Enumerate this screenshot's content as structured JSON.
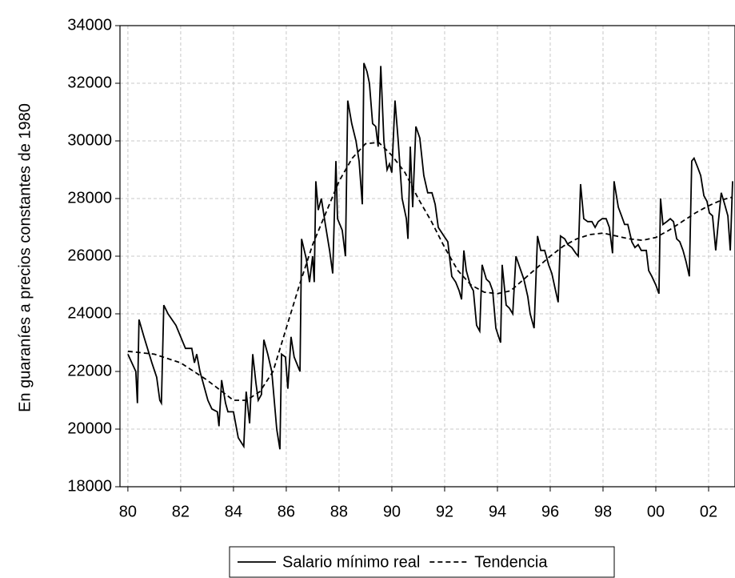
{
  "chart_data": {
    "type": "line",
    "y_label": "En guaraníes a precios constantes de 1980",
    "xlim": [
      1979.7,
      2003.0
    ],
    "ylim": [
      18000,
      34000
    ],
    "xticks": [
      {
        "value": 1980,
        "label": "80"
      },
      {
        "value": 1982,
        "label": "82"
      },
      {
        "value": 1984,
        "label": "84"
      },
      {
        "value": 1986,
        "label": "86"
      },
      {
        "value": 1988,
        "label": "88"
      },
      {
        "value": 1990,
        "label": "90"
      },
      {
        "value": 1992,
        "label": "92"
      },
      {
        "value": 1994,
        "label": "94"
      },
      {
        "value": 1996,
        "label": "96"
      },
      {
        "value": 1998,
        "label": "98"
      },
      {
        "value": 2000,
        "label": "00"
      },
      {
        "value": 2002,
        "label": "02"
      }
    ],
    "yticks": [
      18000,
      20000,
      22000,
      24000,
      26000,
      28000,
      30000,
      32000,
      34000
    ],
    "grid": true,
    "legend": "bottom",
    "series": [
      {
        "name": "Salario mínimo real",
        "color": "#000000",
        "dash": "solid",
        "x": [
          1980.0,
          1980.3,
          1980.36,
          1980.42,
          1980.61,
          1980.91,
          1981.09,
          1981.21,
          1981.27,
          1981.36,
          1981.52,
          1981.82,
          1982.18,
          1982.42,
          1982.52,
          1982.61,
          1982.73,
          1982.82,
          1983.03,
          1983.18,
          1983.39,
          1983.45,
          1983.55,
          1983.7,
          1983.79,
          1984.0,
          1984.18,
          1984.39,
          1984.48,
          1984.61,
          1984.73,
          1984.85,
          1984.94,
          1985.06,
          1985.15,
          1985.3,
          1985.45,
          1985.64,
          1985.76,
          1985.82,
          1985.97,
          1986.06,
          1986.18,
          1986.3,
          1986.52,
          1986.58,
          1986.76,
          1986.88,
          1987.0,
          1987.06,
          1987.12,
          1987.21,
          1987.33,
          1987.48,
          1987.64,
          1987.76,
          1987.88,
          1987.94,
          1988.12,
          1988.24,
          1988.33,
          1988.48,
          1988.64,
          1988.76,
          1988.88,
          1988.94,
          1989.06,
          1989.15,
          1989.27,
          1989.39,
          1989.48,
          1989.58,
          1989.7,
          1989.82,
          1989.91,
          1990.0,
          1990.12,
          1990.24,
          1990.39,
          1990.55,
          1990.61,
          1990.7,
          1990.79,
          1990.91,
          1991.06,
          1991.21,
          1991.36,
          1991.52,
          1991.64,
          1991.76,
          1991.97,
          1992.12,
          1992.27,
          1992.42,
          1992.55,
          1992.64,
          1992.73,
          1992.82,
          1992.97,
          1993.09,
          1993.21,
          1993.33,
          1993.42,
          1993.58,
          1993.7,
          1993.82,
          1993.94,
          1994.12,
          1994.18,
          1994.33,
          1994.45,
          1994.58,
          1994.7,
          1994.85,
          1995.0,
          1995.15,
          1995.24,
          1995.39,
          1995.52,
          1995.64,
          1995.79,
          1995.94,
          1996.06,
          1996.18,
          1996.3,
          1996.39,
          1996.55,
          1996.67,
          1996.82,
          1996.97,
          1997.06,
          1997.15,
          1997.27,
          1997.42,
          1997.58,
          1997.7,
          1997.82,
          1997.97,
          1998.12,
          1998.24,
          1998.36,
          1998.42,
          1998.58,
          1998.7,
          1998.82,
          1998.94,
          1999.09,
          1999.21,
          1999.33,
          1999.45,
          1999.64,
          1999.73,
          1999.85,
          2000.0,
          2000.12,
          2000.18,
          2000.27,
          2000.42,
          2000.55,
          2000.67,
          2000.79,
          2000.91,
          2001.03,
          2001.15,
          2001.27,
          2001.36,
          2001.45,
          2001.58,
          2001.7,
          2001.82,
          2001.94,
          2002.03,
          2002.15,
          2002.27,
          2002.36,
          2002.48,
          2002.61,
          2002.73,
          2002.82,
          2002.91
        ],
        "values": [
          22600,
          22000,
          20900,
          23800,
          23200,
          22300,
          21800,
          21000,
          20900,
          24300,
          24000,
          23600,
          22800,
          22800,
          22300,
          22600,
          22000,
          21700,
          21000,
          20700,
          20600,
          20100,
          21700,
          20900,
          20600,
          20600,
          19700,
          19400,
          21300,
          20200,
          22600,
          21600,
          21000,
          21200,
          23100,
          22600,
          22000,
          20000,
          19300,
          22600,
          22500,
          21400,
          23200,
          22500,
          22000,
          26600,
          25900,
          25100,
          26000,
          25100,
          28600,
          27600,
          28000,
          27100,
          26200,
          25400,
          29300,
          27300,
          26900,
          26000,
          31400,
          30600,
          30000,
          29300,
          27800,
          32700,
          32400,
          32000,
          30600,
          30500,
          29800,
          32600,
          30000,
          29000,
          29200,
          28900,
          31400,
          30000,
          28000,
          27300,
          26600,
          29800,
          27700,
          30500,
          30100,
          28800,
          28200,
          28200,
          27800,
          27000,
          26700,
          26500,
          25300,
          25100,
          24800,
          24500,
          26200,
          25500,
          25000,
          24800,
          23600,
          23400,
          25700,
          25200,
          25100,
          24800,
          23500,
          23000,
          25700,
          24300,
          24200,
          24000,
          26000,
          25600,
          25200,
          24600,
          24000,
          23500,
          26700,
          26200,
          26200,
          25700,
          25400,
          24900,
          24400,
          26700,
          26600,
          26400,
          26300,
          26100,
          26000,
          28500,
          27300,
          27200,
          27200,
          27000,
          27200,
          27300,
          27300,
          27000,
          26100,
          28600,
          27700,
          27400,
          27100,
          27100,
          26500,
          26300,
          26400,
          26200,
          26200,
          25500,
          25300,
          25000,
          24700,
          28000,
          27100,
          27200,
          27300,
          27200,
          26600,
          26500,
          26200,
          25800,
          25300,
          29300,
          29400,
          29100,
          28800,
          28100,
          27900,
          27500,
          27400,
          26200,
          27100,
          28200,
          27800,
          27400,
          26200,
          28600
        ]
      },
      {
        "name": "Tendencia",
        "color": "#000000",
        "dash": "dashed",
        "x": [
          1980,
          1981,
          1982,
          1983,
          1984,
          1984.5,
          1985,
          1985.5,
          1986,
          1986.5,
          1987,
          1987.5,
          1988,
          1988.5,
          1989,
          1989.5,
          1990,
          1990.5,
          1991,
          1991.5,
          1992,
          1992.5,
          1993,
          1993.5,
          1994,
          1994.5,
          1995,
          1995.5,
          1996,
          1996.5,
          1997,
          1997.5,
          1998,
          1998.5,
          1999,
          1999.5,
          2000,
          2000.5,
          2001,
          2001.5,
          2002,
          2002.5,
          2002.9
        ],
        "values": [
          22700,
          22600,
          22300,
          21700,
          21000,
          21000,
          21300,
          22000,
          23500,
          25000,
          26400,
          27500,
          28600,
          29400,
          29900,
          29950,
          29500,
          28900,
          28000,
          27200,
          26300,
          25500,
          25000,
          24750,
          24700,
          24800,
          25200,
          25600,
          26000,
          26350,
          26600,
          26750,
          26800,
          26700,
          26600,
          26550,
          26650,
          26900,
          27200,
          27500,
          27750,
          27950,
          28050
        ]
      }
    ]
  }
}
